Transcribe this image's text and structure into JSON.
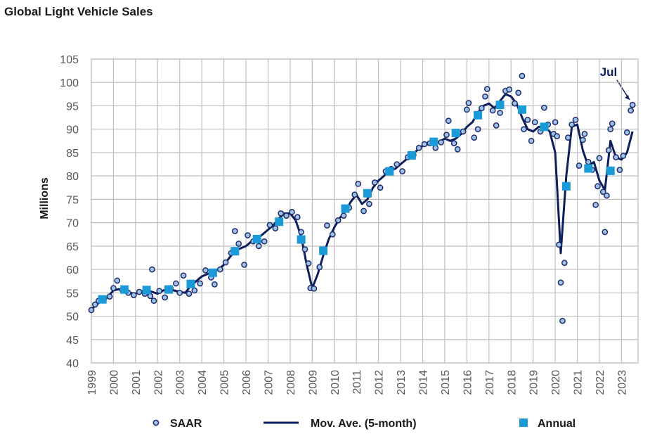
{
  "chart_data": {
    "type": "combo",
    "title": "Global Light Vehicle Sales",
    "y_label": "Millions",
    "annotation": "Jul",
    "xlim": [
      1999,
      2023.75
    ],
    "xticks": [
      1999,
      2000,
      2001,
      2002,
      2003,
      2004,
      2005,
      2006,
      2007,
      2008,
      2009,
      2010,
      2011,
      2012,
      2013,
      2014,
      2015,
      2016,
      2017,
      2018,
      2019,
      2020,
      2021,
      2022,
      2023
    ],
    "ylim": [
      40,
      105
    ],
    "yticks": [
      40,
      45,
      50,
      55,
      60,
      65,
      70,
      75,
      80,
      85,
      90,
      95,
      100,
      105
    ],
    "grid": true,
    "legend": "bottom",
    "series": [
      {
        "name": "SAAR",
        "kind": "scatter",
        "color": "#9dc3e6",
        "edge": "#1f2a6b",
        "x": [
          1999.0,
          1999.17,
          1999.33,
          1999.58,
          1999.83,
          2000.0,
          2000.17,
          2000.42,
          2000.67,
          2000.92,
          2001.17,
          2001.42,
          2001.67,
          2001.75,
          2001.83,
          2002.08,
          2002.33,
          2002.58,
          2002.83,
          2003.0,
          2003.17,
          2003.42,
          2003.67,
          2003.92,
          2004.17,
          2004.42,
          2004.58,
          2004.83,
          2005.08,
          2005.33,
          2005.5,
          2005.67,
          2005.92,
          2006.08,
          2006.33,
          2006.58,
          2006.83,
          2007.08,
          2007.33,
          2007.58,
          2007.83,
          2008.08,
          2008.33,
          2008.5,
          2008.67,
          2008.83,
          2008.92,
          2009.08,
          2009.33,
          2009.5,
          2009.67,
          2009.92,
          2010.17,
          2010.42,
          2010.67,
          2010.92,
          2011.08,
          2011.33,
          2011.58,
          2011.83,
          2012.08,
          2012.33,
          2012.58,
          2012.83,
          2013.08,
          2013.33,
          2013.58,
          2013.83,
          2014.08,
          2014.33,
          2014.58,
          2014.83,
          2015.08,
          2015.17,
          2015.42,
          2015.58,
          2015.83,
          2016.0,
          2016.08,
          2016.33,
          2016.5,
          2016.67,
          2016.83,
          2016.92,
          2017.17,
          2017.33,
          2017.5,
          2017.75,
          2017.92,
          2018.17,
          2018.33,
          2018.5,
          2018.58,
          2018.75,
          2018.92,
          2019.08,
          2019.33,
          2019.5,
          2019.67,
          2019.92,
          2020.0,
          2020.08,
          2020.17,
          2020.25,
          2020.33,
          2020.42,
          2020.58,
          2020.75,
          2020.92,
          2021.08,
          2021.25,
          2021.33,
          2021.5,
          2021.67,
          2021.83,
          2021.92,
          2022.0,
          2022.17,
          2022.25,
          2022.33,
          2022.42,
          2022.5,
          2022.58,
          2022.75,
          2022.92,
          2023.08,
          2023.25,
          2023.42,
          2023.5
        ],
        "values": [
          51.3,
          52.5,
          53.3,
          53.8,
          54.2,
          56.0,
          57.6,
          55.5,
          55.0,
          54.5,
          55.2,
          54.8,
          54.3,
          60.0,
          53.3,
          55.4,
          54.0,
          56.0,
          57.0,
          55.0,
          58.7,
          54.8,
          55.5,
          57.0,
          59.8,
          58.3,
          56.8,
          60.0,
          61.5,
          63.5,
          68.2,
          65.5,
          61.0,
          67.3,
          66.0,
          65.0,
          66.0,
          69.5,
          68.8,
          72.0,
          71.5,
          72.3,
          71.2,
          68.0,
          64.3,
          61.3,
          56.0,
          55.9,
          60.5,
          64.0,
          69.4,
          67.5,
          70.5,
          71.5,
          73.2,
          76.0,
          78.3,
          72.5,
          74.0,
          78.6,
          77.5,
          81.0,
          81.5,
          82.5,
          81.0,
          84.0,
          84.5,
          86.0,
          86.8,
          87.0,
          86.0,
          87.2,
          88.8,
          91.8,
          87.0,
          85.7,
          89.5,
          94.2,
          95.6,
          88.2,
          90.0,
          94.5,
          97.0,
          98.6,
          94.0,
          90.8,
          93.5,
          98.2,
          98.5,
          95.5,
          97.8,
          101.4,
          90.0,
          92.0,
          87.5,
          91.5,
          89.5,
          94.6,
          91.0,
          89.0,
          91.5,
          88.5,
          65.3,
          57.2,
          49.0,
          61.4,
          88.2,
          91.0,
          92.0,
          82.2,
          87.7,
          89.0,
          83.0,
          81.3,
          73.8,
          77.8,
          83.8,
          76.6,
          68.0,
          75.8,
          85.5,
          90.0,
          91.2,
          84.0,
          81.3,
          84.3,
          89.3,
          94.0,
          95.2
        ]
      },
      {
        "name": "Mov. Ave. (5-month)",
        "kind": "line",
        "color": "#0d1f5c",
        "x": [
          1999.0,
          1999.25,
          1999.5,
          1999.75,
          2000.0,
          2000.25,
          2000.5,
          2000.75,
          2001.0,
          2001.25,
          2001.5,
          2001.75,
          2002.0,
          2002.25,
          2002.5,
          2002.75,
          2003.0,
          2003.25,
          2003.5,
          2003.75,
          2004.0,
          2004.25,
          2004.5,
          2004.75,
          2005.0,
          2005.25,
          2005.5,
          2005.75,
          2006.0,
          2006.25,
          2006.5,
          2006.75,
          2007.0,
          2007.25,
          2007.5,
          2007.75,
          2008.0,
          2008.25,
          2008.5,
          2008.75,
          2009.0,
          2009.25,
          2009.5,
          2009.75,
          2010.0,
          2010.25,
          2010.5,
          2010.75,
          2011.0,
          2011.25,
          2011.5,
          2011.75,
          2012.0,
          2012.25,
          2012.5,
          2012.75,
          2013.0,
          2013.25,
          2013.5,
          2013.75,
          2014.0,
          2014.25,
          2014.5,
          2014.75,
          2015.0,
          2015.25,
          2015.5,
          2015.75,
          2016.0,
          2016.25,
          2016.5,
          2016.75,
          2017.0,
          2017.25,
          2017.5,
          2017.75,
          2018.0,
          2018.25,
          2018.5,
          2018.75,
          2019.0,
          2019.25,
          2019.5,
          2019.75,
          2020.0,
          2020.25,
          2020.5,
          2020.75,
          2021.0,
          2021.25,
          2021.5,
          2021.75,
          2022.0,
          2022.25,
          2022.5,
          2022.75,
          2023.0,
          2023.25,
          2023.5
        ],
        "values": [
          51.5,
          52.5,
          53.5,
          54.2,
          55.5,
          55.8,
          55.2,
          55.0,
          54.8,
          55.3,
          55.5,
          55.2,
          54.8,
          55.5,
          55.8,
          55.5,
          55.2,
          55.0,
          56.5,
          57.5,
          58.5,
          59.0,
          59.5,
          60.0,
          61.0,
          62.5,
          64.0,
          64.5,
          65.0,
          66.0,
          66.5,
          67.5,
          68.5,
          69.5,
          71.0,
          72.0,
          72.0,
          70.5,
          67.0,
          61.0,
          56.0,
          59.0,
          63.0,
          66.5,
          69.0,
          71.0,
          72.5,
          74.5,
          76.0,
          74.0,
          75.0,
          77.5,
          79.0,
          80.0,
          81.5,
          81.5,
          82.5,
          83.5,
          84.5,
          85.5,
          86.5,
          86.8,
          87.0,
          87.3,
          88.0,
          87.5,
          88.0,
          89.0,
          90.5,
          91.5,
          93.5,
          95.0,
          95.5,
          94.5,
          96.0,
          97.5,
          97.0,
          95.5,
          92.5,
          90.0,
          89.5,
          90.5,
          90.5,
          89.5,
          85.0,
          63.5,
          80.0,
          90.5,
          91.0,
          85.5,
          82.0,
          83.0,
          79.0,
          77.0,
          87.5,
          84.0,
          83.5,
          85.0,
          89.5
        ]
      },
      {
        "name": "Annual",
        "kind": "square",
        "color": "#1a9ad6",
        "x": [
          1999.5,
          2000.5,
          2001.5,
          2002.5,
          2003.5,
          2004.5,
          2005.5,
          2006.5,
          2007.5,
          2008.5,
          2009.5,
          2010.5,
          2011.5,
          2012.5,
          2013.5,
          2014.5,
          2015.5,
          2016.5,
          2017.5,
          2018.5,
          2019.5,
          2020.5,
          2021.5,
          2022.5
        ],
        "values": [
          53.6,
          55.7,
          55.6,
          55.7,
          56.9,
          59.3,
          63.9,
          66.5,
          70.2,
          66.4,
          64.0,
          73.0,
          76.3,
          81.0,
          84.4,
          87.3,
          89.2,
          93.0,
          95.2,
          94.2,
          90.5,
          77.8,
          81.6,
          81.1
        ]
      }
    ]
  }
}
